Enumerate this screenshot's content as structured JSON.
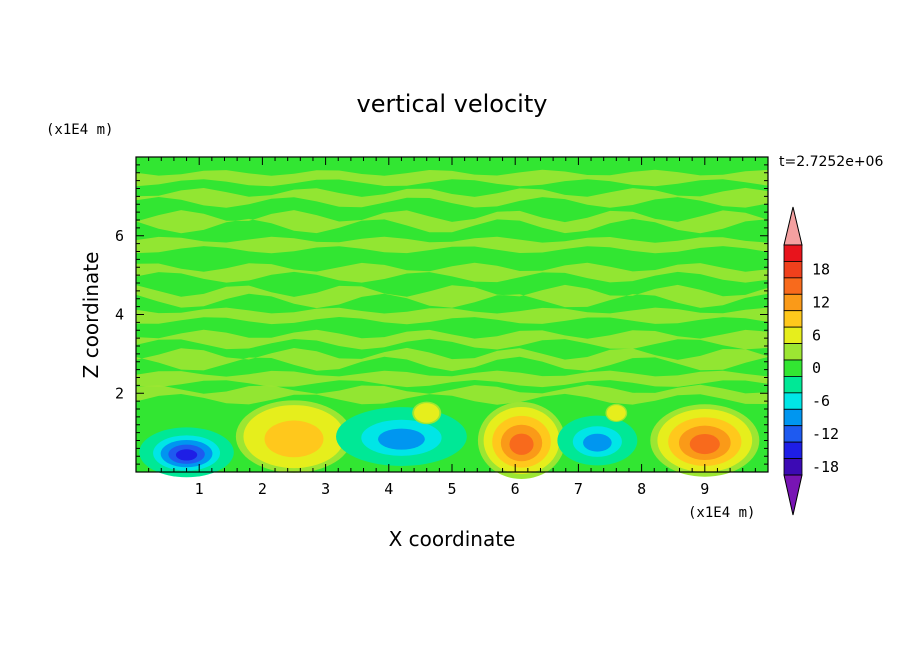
{
  "chart_data": {
    "type": "heatmap",
    "title": "vertical velocity",
    "xlabel": "X coordinate",
    "ylabel": "Z coordinate",
    "x_unit": "(x1E4 m)",
    "y_unit": "(x1E4 m)",
    "time_label": "t=2.7252e+06",
    "xlim": [
      0,
      10
    ],
    "ylim": [
      0,
      8
    ],
    "x_ticks": [
      1,
      2,
      3,
      4,
      5,
      6,
      7,
      8,
      9
    ],
    "y_ticks": [
      2,
      4,
      6
    ],
    "colorbar": {
      "ticks": [
        18,
        12,
        6,
        0,
        -6,
        -12,
        -18
      ],
      "levels": [
        {
          "min": 21,
          "max": null,
          "color": "#f4a0a0"
        },
        {
          "min": 18,
          "max": 21,
          "color": "#e8141c"
        },
        {
          "min": 15,
          "max": 18,
          "color": "#f0401c"
        },
        {
          "min": 12,
          "max": 15,
          "color": "#f86a1c"
        },
        {
          "min": 9,
          "max": 12,
          "color": "#fa9a18"
        },
        {
          "min": 6,
          "max": 9,
          "color": "#ffc81c"
        },
        {
          "min": 3,
          "max": 6,
          "color": "#e6ee1c"
        },
        {
          "min": 0,
          "max": 3,
          "color": "#9ce632"
        },
        {
          "min": -3,
          "max": 0,
          "color": "#32e632"
        },
        {
          "min": -6,
          "max": -3,
          "color": "#00e896"
        },
        {
          "min": -9,
          "max": -6,
          "color": "#00e6e6"
        },
        {
          "min": -12,
          "max": -9,
          "color": "#0096f0"
        },
        {
          "min": -15,
          "max": -12,
          "color": "#1e5af0"
        },
        {
          "min": -18,
          "max": -15,
          "color": "#1e1ee6"
        },
        {
          "min": -21,
          "max": -18,
          "color": "#3c0ab4"
        },
        {
          "min": null,
          "max": -21,
          "color": "#7814b4"
        }
      ]
    },
    "cells": [
      {
        "x": 0.8,
        "z": 0.5,
        "value": -15,
        "rx": 0.65,
        "rz": 0.55
      },
      {
        "x": 2.5,
        "z": 0.9,
        "value": 8,
        "rx": 0.8,
        "rz": 0.8
      },
      {
        "x": 4.2,
        "z": 0.9,
        "value": -10,
        "rx": 0.9,
        "rz": 0.65
      },
      {
        "x": 4.6,
        "z": 1.5,
        "value": 4,
        "rx": 0.2,
        "rz": 0.25
      },
      {
        "x": 6.1,
        "z": 0.8,
        "value": 14,
        "rx": 0.6,
        "rz": 0.85
      },
      {
        "x": 7.3,
        "z": 0.8,
        "value": -9,
        "rx": 0.55,
        "rz": 0.55
      },
      {
        "x": 7.6,
        "z": 1.5,
        "value": 3,
        "rx": 0.15,
        "rz": 0.2
      },
      {
        "x": 9.0,
        "z": 0.8,
        "value": 13,
        "rx": 0.75,
        "rz": 0.8
      }
    ],
    "background_value": -2
  }
}
